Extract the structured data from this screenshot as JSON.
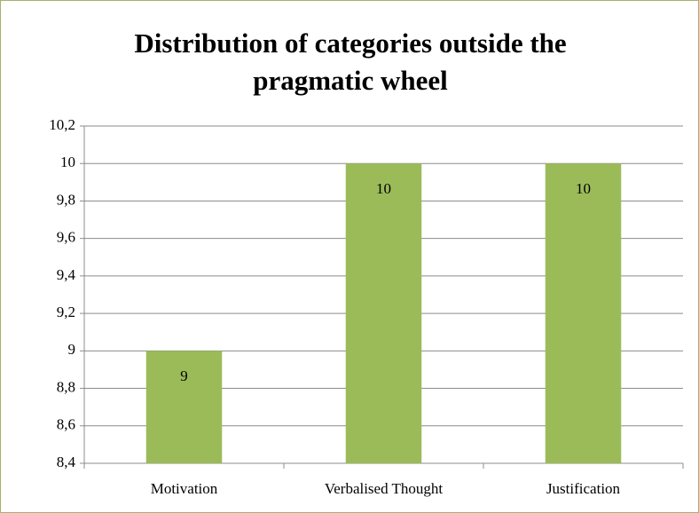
{
  "chart_data": {
    "type": "bar",
    "title": "Distribution of categories outside the pragmatic wheel",
    "categories": [
      "Motivation",
      "Verbalised Thought",
      "Justification"
    ],
    "values": [
      9,
      10,
      10
    ],
    "color": "#9bbb59",
    "ylim": [
      8.4,
      10.2
    ],
    "yticks": [
      {
        "value": 8.4,
        "label": "8,4"
      },
      {
        "value": 8.6,
        "label": "8,6"
      },
      {
        "value": 8.8,
        "label": "8,8"
      },
      9,
      {
        "value": 9.2,
        "label": "9,2"
      },
      {
        "value": 9.4,
        "label": "9,4"
      },
      {
        "value": 9.6,
        "label": "9,6"
      },
      {
        "value": 9.8,
        "label": "9,8"
      },
      10,
      {
        "value": 10.2,
        "label": "10,2"
      }
    ],
    "grid": true
  }
}
